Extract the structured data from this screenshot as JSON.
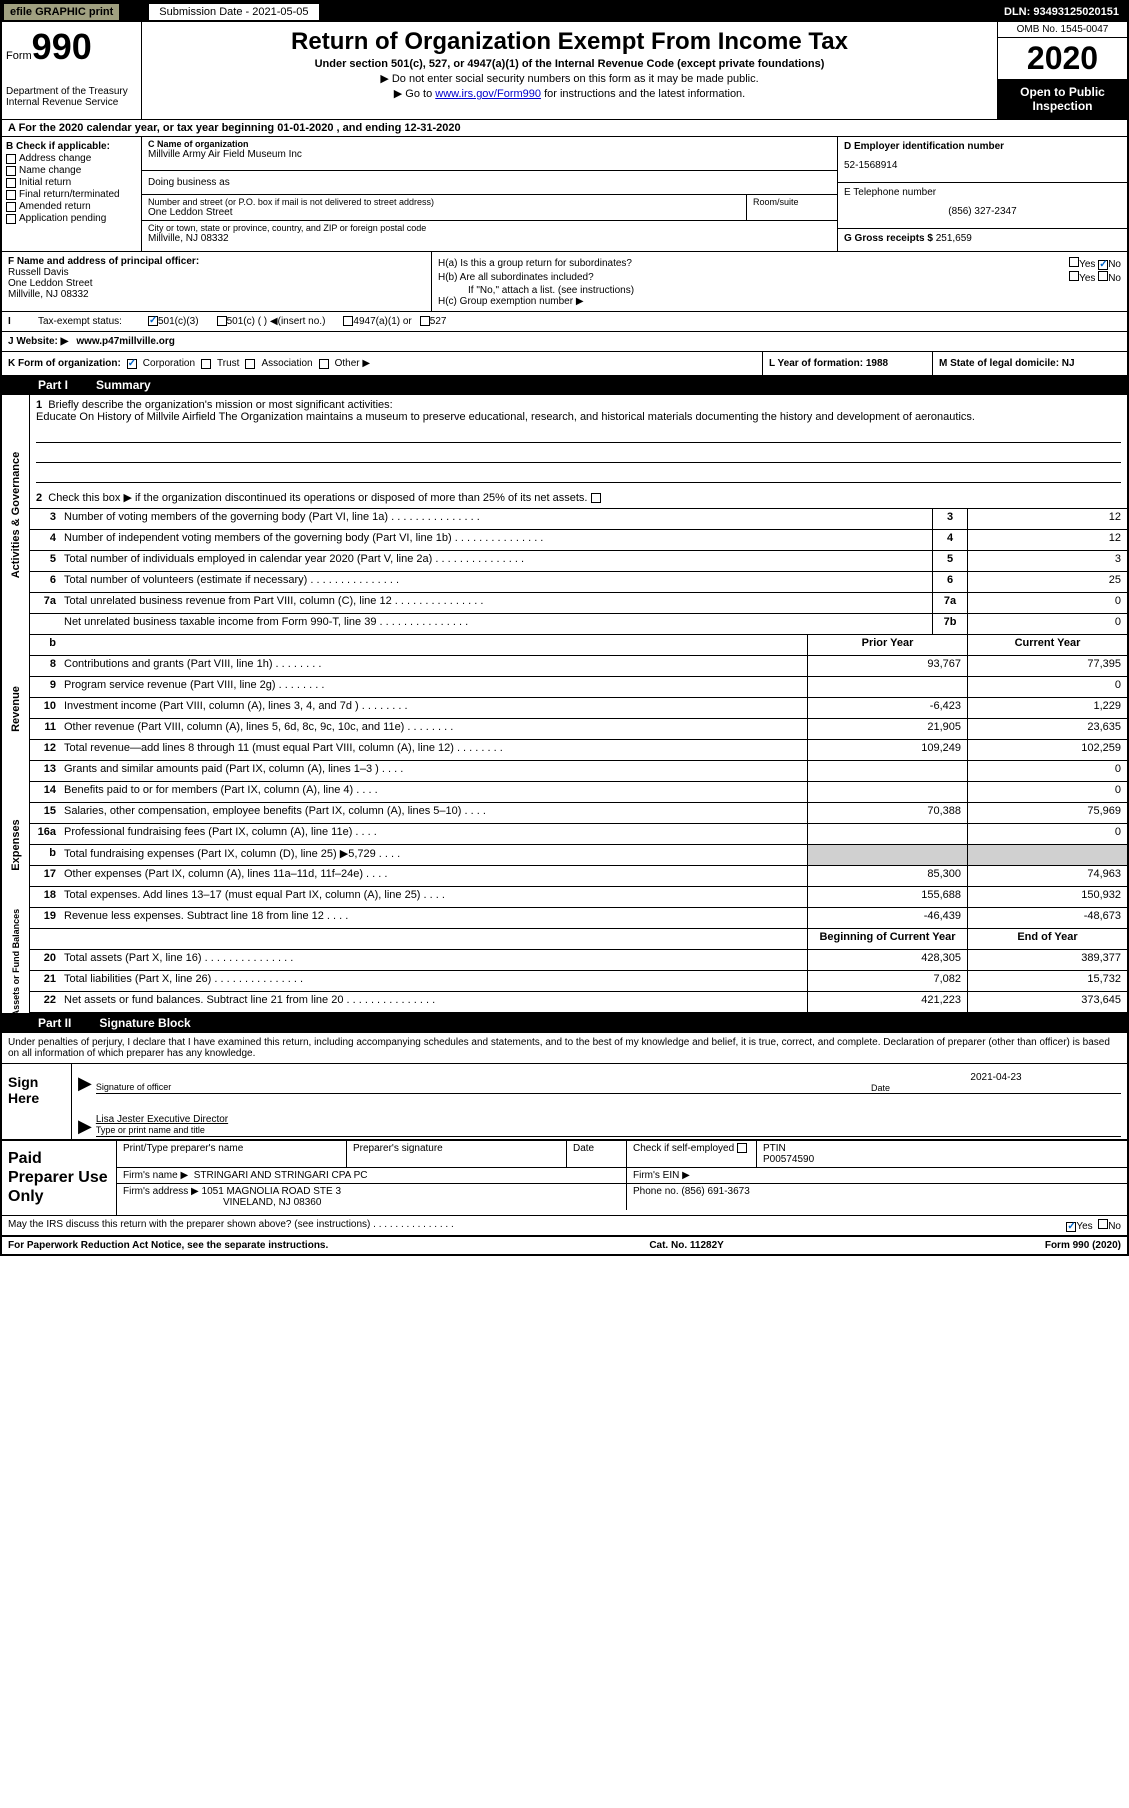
{
  "topbar": {
    "efile": "efile GRAPHIC print",
    "submission": "Submission Date - 2021-05-05",
    "dln": "DLN: 93493125020151"
  },
  "header": {
    "form_label": "Form",
    "form_num": "990",
    "dept": "Department of the Treasury\nInternal Revenue Service",
    "title": "Return of Organization Exempt From Income Tax",
    "subtitle": "Under section 501(c), 527, or 4947(a)(1) of the Internal Revenue Code (except private foundations)",
    "inst1": "▶ Do not enter social security numbers on this form as it may be made public.",
    "inst2_pre": "▶ Go to ",
    "inst2_link": "www.irs.gov/Form990",
    "inst2_post": " for instructions and the latest information.",
    "omb": "OMB No. 1545-0047",
    "year": "2020",
    "inspection": "Open to Public Inspection"
  },
  "section_a": "A   For the 2020 calendar year, or tax year beginning 01-01-2020    , and ending 12-31-2020",
  "section_b": {
    "label": "B Check if applicable:",
    "items": [
      "Address change",
      "Name change",
      "Initial return",
      "Final return/terminated",
      "Amended return",
      "Application pending"
    ]
  },
  "section_c": {
    "label": "C Name of organization",
    "name": "Millville Army Air Field Museum Inc",
    "dba_label": "Doing business as",
    "street_label": "Number and street (or P.O. box if mail is not delivered to street address)",
    "street": "One Leddon Street",
    "suite_label": "Room/suite",
    "city_label": "City or town, state or province, country, and ZIP or foreign postal code",
    "city": "Millville, NJ  08332"
  },
  "section_d": {
    "label": "D Employer identification number",
    "value": "52-1568914"
  },
  "section_e": {
    "label": "E Telephone number",
    "value": "(856) 327-2347"
  },
  "section_g": {
    "label": "G Gross receipts $",
    "value": "251,659"
  },
  "section_f": {
    "label": "F  Name and address of principal officer:",
    "name": "Russell Davis",
    "street": "One Leddon Street",
    "city": "Millville, NJ  08332"
  },
  "section_h": {
    "ha": "H(a)  Is this a group return for subordinates?",
    "hb": "H(b)  Are all subordinates included?",
    "hb_note": "If \"No,\" attach a list. (see instructions)",
    "hc": "H(c)  Group exemption number ▶",
    "yes": "Yes",
    "no": "No"
  },
  "section_i": {
    "label": "Tax-exempt status:",
    "o1": "501(c)(3)",
    "o2": "501(c) (  ) ◀(insert no.)",
    "o3": "4947(a)(1) or",
    "o4": "527"
  },
  "section_j": {
    "label": "J   Website: ▶",
    "value": "www.p47millville.org"
  },
  "section_k": {
    "label": "K Form of organization:",
    "o1": "Corporation",
    "o2": "Trust",
    "o3": "Association",
    "o4": "Other ▶"
  },
  "section_l": "L Year of formation: 1988",
  "section_m": "M State of legal domicile: NJ",
  "part1": {
    "num": "Part I",
    "title": "Summary"
  },
  "summary": {
    "gov_label": "Activities & Governance",
    "rev_label": "Revenue",
    "exp_label": "Expenses",
    "net_label": "Net Assets or Fund Balances",
    "q1_label": "Briefly describe the organization's mission or most significant activities:",
    "q1_text": "Educate On History of Millvile Airfield The Organization maintains a museum to preserve educational, research, and historical materials documenting the history and development of aeronautics.",
    "q2": "Check this box ▶       if the organization discontinued its operations or disposed of more than 25% of its net assets.",
    "prior_year": "Prior Year",
    "current_year": "Current Year",
    "begin_year": "Beginning of Current Year",
    "end_year": "End of Year",
    "rows_gov": [
      {
        "n": "3",
        "t": "Number of voting members of the governing body (Part VI, line 1a)",
        "bn": "3",
        "v": "12"
      },
      {
        "n": "4",
        "t": "Number of independent voting members of the governing body (Part VI, line 1b)",
        "bn": "4",
        "v": "12"
      },
      {
        "n": "5",
        "t": "Total number of individuals employed in calendar year 2020 (Part V, line 2a)",
        "bn": "5",
        "v": "3"
      },
      {
        "n": "6",
        "t": "Total number of volunteers (estimate if necessary)",
        "bn": "6",
        "v": "25"
      },
      {
        "n": "7a",
        "t": "Total unrelated business revenue from Part VIII, column (C), line 12",
        "bn": "7a",
        "v": "0"
      },
      {
        "n": "",
        "t": "Net unrelated business taxable income from Form 990-T, line 39",
        "bn": "7b",
        "v": "0"
      }
    ],
    "rows_rev": [
      {
        "n": "8",
        "t": "Contributions and grants (Part VIII, line 1h)",
        "py": "93,767",
        "cy": "77,395"
      },
      {
        "n": "9",
        "t": "Program service revenue (Part VIII, line 2g)",
        "py": "",
        "cy": "0"
      },
      {
        "n": "10",
        "t": "Investment income (Part VIII, column (A), lines 3, 4, and 7d )",
        "py": "-6,423",
        "cy": "1,229"
      },
      {
        "n": "11",
        "t": "Other revenue (Part VIII, column (A), lines 5, 6d, 8c, 9c, 10c, and 11e)",
        "py": "21,905",
        "cy": "23,635"
      },
      {
        "n": "12",
        "t": "Total revenue—add lines 8 through 11 (must equal Part VIII, column (A), line 12)",
        "py": "109,249",
        "cy": "102,259"
      }
    ],
    "rows_exp": [
      {
        "n": "13",
        "t": "Grants and similar amounts paid (Part IX, column (A), lines 1–3 )",
        "py": "",
        "cy": "0"
      },
      {
        "n": "14",
        "t": "Benefits paid to or for members (Part IX, column (A), line 4)",
        "py": "",
        "cy": "0"
      },
      {
        "n": "15",
        "t": "Salaries, other compensation, employee benefits (Part IX, column (A), lines 5–10)",
        "py": "70,388",
        "cy": "75,969"
      },
      {
        "n": "16a",
        "t": "Professional fundraising fees (Part IX, column (A), line 11e)",
        "py": "",
        "cy": "0"
      },
      {
        "n": "b",
        "t": "Total fundraising expenses (Part IX, column (D), line 25) ▶5,729",
        "py": "shaded",
        "cy": "shaded"
      },
      {
        "n": "17",
        "t": "Other expenses (Part IX, column (A), lines 11a–11d, 11f–24e)",
        "py": "85,300",
        "cy": "74,963"
      },
      {
        "n": "18",
        "t": "Total expenses. Add lines 13–17 (must equal Part IX, column (A), line 25)",
        "py": "155,688",
        "cy": "150,932"
      },
      {
        "n": "19",
        "t": "Revenue less expenses. Subtract line 18 from line 12",
        "py": "-46,439",
        "cy": "-48,673"
      }
    ],
    "rows_net": [
      {
        "n": "20",
        "t": "Total assets (Part X, line 16)",
        "py": "428,305",
        "cy": "389,377"
      },
      {
        "n": "21",
        "t": "Total liabilities (Part X, line 26)",
        "py": "7,082",
        "cy": "15,732"
      },
      {
        "n": "22",
        "t": "Net assets or fund balances. Subtract line 21 from line 20",
        "py": "421,223",
        "cy": "373,645"
      }
    ]
  },
  "part2": {
    "num": "Part II",
    "title": "Signature Block"
  },
  "sig": {
    "perjury": "Under penalties of perjury, I declare that I have examined this return, including accompanying schedules and statements, and to the best of my knowledge and belief, it is true, correct, and complete. Declaration of preparer (other than officer) is based on all information of which preparer has any knowledge.",
    "sign_here": "Sign Here",
    "sig_officer": "Signature of officer",
    "date_label": "Date",
    "date_val": "2021-04-23",
    "name_title": "Lisa Jester  Executive Director",
    "type_label": "Type or print name and title"
  },
  "prep": {
    "label": "Paid Preparer Use Only",
    "print_name": "Print/Type preparer's name",
    "prep_sig": "Preparer's signature",
    "date": "Date",
    "check_self": "Check        if self-employed",
    "ptin_label": "PTIN",
    "ptin": "P00574590",
    "firm_name_label": "Firm's name    ▶",
    "firm_name": "STRINGARI AND STRINGARI CPA PC",
    "firm_ein": "Firm's EIN ▶",
    "firm_addr_label": "Firm's address ▶",
    "firm_addr": "1051 MAGNOLIA ROAD STE 3",
    "firm_city": "VINELAND, NJ  08360",
    "phone_label": "Phone no.",
    "phone": "(856) 691-3673"
  },
  "footer": {
    "discuss": "May the IRS discuss this return with the preparer shown above? (see instructions)",
    "yes": "Yes",
    "no": "No",
    "paperwork": "For Paperwork Reduction Act Notice, see the separate instructions.",
    "cat": "Cat. No. 11282Y",
    "form": "Form 990 (2020)"
  }
}
